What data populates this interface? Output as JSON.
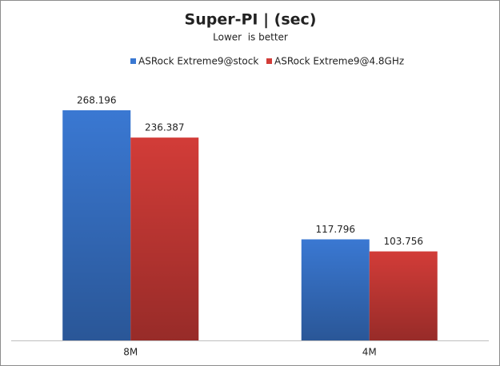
{
  "chart_data": {
    "type": "bar",
    "title": "Super-PI | (sec)",
    "subtitle": "Lower  is better",
    "categories": [
      "8M",
      "4M"
    ],
    "series": [
      {
        "name": "ASRock Extreme9@stock",
        "color": "#3a78d2",
        "values": [
          268.196,
          117.796
        ]
      },
      {
        "name": "ASRock Extreme9@4.8GHz",
        "color": "#d23c38",
        "values": [
          236.387,
          103.756
        ]
      }
    ],
    "legend": "top",
    "grid": false
  }
}
